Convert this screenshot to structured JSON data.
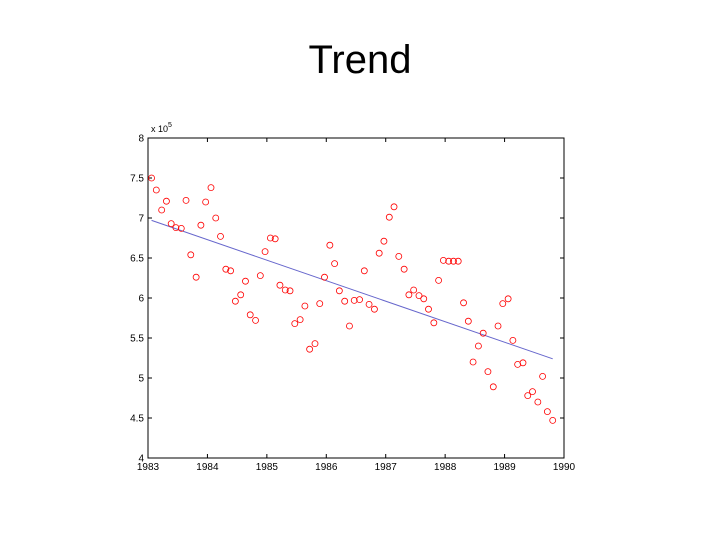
{
  "slide": {
    "title": "Trend"
  },
  "chart_data": {
    "type": "scatter",
    "title": "",
    "xlabel": "",
    "ylabel": "",
    "xlim": [
      1983,
      1990
    ],
    "ylim": [
      4,
      8
    ],
    "y_multiplier_label": "x 10",
    "y_multiplier_exponent": "5",
    "xticks": [
      1983,
      1984,
      1985,
      1986,
      1987,
      1988,
      1989,
      1990
    ],
    "yticks": [
      4,
      4.5,
      5,
      5.5,
      6,
      6.5,
      7,
      7.5,
      8
    ],
    "ytick_labels": [
      "4",
      "4.5",
      "5",
      "5.5",
      "6",
      "6.5",
      "7",
      "7.5",
      "8"
    ],
    "grid": false,
    "marker_color": "#ff0000",
    "line_color": "#6666cc",
    "series": [
      {
        "type": "scatter",
        "points": [
          [
            1983.06,
            7.5
          ],
          [
            1983.14,
            7.35
          ],
          [
            1983.23,
            7.1
          ],
          [
            1983.31,
            7.21
          ],
          [
            1983.39,
            6.93
          ],
          [
            1983.47,
            6.88
          ],
          [
            1983.56,
            6.87
          ],
          [
            1983.64,
            7.22
          ],
          [
            1983.72,
            6.54
          ],
          [
            1983.81,
            6.26
          ],
          [
            1983.89,
            6.91
          ],
          [
            1983.97,
            7.2
          ],
          [
            1984.06,
            7.38
          ],
          [
            1984.14,
            7.0
          ],
          [
            1984.22,
            6.77
          ],
          [
            1984.31,
            6.36
          ],
          [
            1984.39,
            6.34
          ],
          [
            1984.47,
            5.96
          ],
          [
            1984.56,
            6.04
          ],
          [
            1984.64,
            6.21
          ],
          [
            1984.72,
            5.79
          ],
          [
            1984.81,
            5.72
          ],
          [
            1984.89,
            6.28
          ],
          [
            1984.97,
            6.58
          ],
          [
            1985.06,
            6.75
          ],
          [
            1985.14,
            6.74
          ],
          [
            1985.22,
            6.16
          ],
          [
            1985.31,
            6.1
          ],
          [
            1985.39,
            6.09
          ],
          [
            1985.47,
            5.68
          ],
          [
            1985.56,
            5.73
          ],
          [
            1985.64,
            5.9
          ],
          [
            1985.72,
            5.36
          ],
          [
            1985.81,
            5.43
          ],
          [
            1985.89,
            5.93
          ],
          [
            1985.97,
            6.26
          ],
          [
            1986.06,
            6.66
          ],
          [
            1986.14,
            6.43
          ],
          [
            1986.22,
            6.09
          ],
          [
            1986.31,
            5.96
          ],
          [
            1986.39,
            5.65
          ],
          [
            1986.47,
            5.97
          ],
          [
            1986.56,
            5.98
          ],
          [
            1986.64,
            6.34
          ],
          [
            1986.72,
            5.92
          ],
          [
            1986.81,
            5.86
          ],
          [
            1986.89,
            6.56
          ],
          [
            1986.97,
            6.71
          ],
          [
            1987.06,
            7.01
          ],
          [
            1987.14,
            7.14
          ],
          [
            1987.22,
            6.52
          ],
          [
            1987.31,
            6.36
          ],
          [
            1987.39,
            6.04
          ],
          [
            1987.47,
            6.1
          ],
          [
            1987.56,
            6.03
          ],
          [
            1987.64,
            5.99
          ],
          [
            1987.72,
            5.86
          ],
          [
            1987.81,
            5.69
          ],
          [
            1987.89,
            6.22
          ],
          [
            1987.97,
            6.47
          ],
          [
            1988.06,
            6.46
          ],
          [
            1988.14,
            6.46
          ],
          [
            1988.22,
            6.46
          ],
          [
            1988.31,
            5.94
          ],
          [
            1988.39,
            5.71
          ],
          [
            1988.47,
            5.2
          ],
          [
            1988.56,
            5.4
          ],
          [
            1988.64,
            5.56
          ],
          [
            1988.72,
            5.08
          ],
          [
            1988.81,
            4.89
          ],
          [
            1988.89,
            5.65
          ],
          [
            1988.97,
            5.93
          ],
          [
            1989.06,
            5.99
          ],
          [
            1989.14,
            5.47
          ],
          [
            1989.22,
            5.17
          ],
          [
            1989.31,
            5.19
          ],
          [
            1989.39,
            4.78
          ],
          [
            1989.47,
            4.83
          ],
          [
            1989.56,
            4.7
          ],
          [
            1989.64,
            5.02
          ],
          [
            1989.72,
            4.58
          ],
          [
            1989.81,
            4.47
          ]
        ]
      },
      {
        "type": "line",
        "points": [
          [
            1983.06,
            6.97
          ],
          [
            1989.81,
            5.24
          ]
        ]
      }
    ]
  }
}
